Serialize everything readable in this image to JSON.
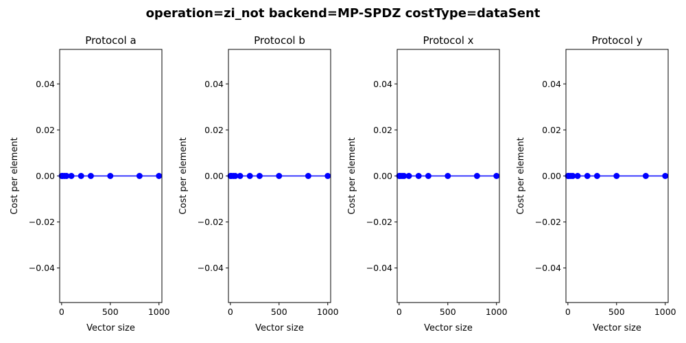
{
  "figure": {
    "title": "operation=zi_not backend=MP-SPDZ costType=dataSent"
  },
  "chart_data": [
    {
      "type": "line",
      "title": "Protocol a",
      "xlabel": "Vector size",
      "ylabel": "Cost per element",
      "xlim": [
        -20,
        1030
      ],
      "ylim": [
        -0.055,
        0.055
      ],
      "xticks": [
        0,
        500,
        1000
      ],
      "yticks": [
        -0.04,
        -0.02,
        0.0,
        0.02,
        0.04
      ],
      "ytick_labels": [
        "−0.04",
        "−0.02",
        "0.00",
        "0.02",
        "0.04"
      ],
      "grid": false,
      "color": "#0000ff",
      "series": [
        {
          "x": [
            1,
            10,
            30,
            50,
            100,
            200,
            300,
            500,
            800,
            1000
          ],
          "y": [
            0,
            0,
            0,
            0,
            0,
            0,
            0,
            0,
            0,
            0
          ]
        }
      ]
    },
    {
      "type": "line",
      "title": "Protocol b",
      "xlabel": "Vector size",
      "ylabel": "Cost per element",
      "xlim": [
        -20,
        1030
      ],
      "ylim": [
        -0.055,
        0.055
      ],
      "xticks": [
        0,
        500,
        1000
      ],
      "yticks": [
        -0.04,
        -0.02,
        0.0,
        0.02,
        0.04
      ],
      "ytick_labels": [
        "−0.04",
        "−0.02",
        "0.00",
        "0.02",
        "0.04"
      ],
      "grid": false,
      "color": "#0000ff",
      "series": [
        {
          "x": [
            1,
            10,
            30,
            50,
            100,
            200,
            300,
            500,
            800,
            1000
          ],
          "y": [
            0,
            0,
            0,
            0,
            0,
            0,
            0,
            0,
            0,
            0
          ]
        }
      ]
    },
    {
      "type": "line",
      "title": "Protocol x",
      "xlabel": "Vector size",
      "ylabel": "Cost per element",
      "xlim": [
        -20,
        1030
      ],
      "ylim": [
        -0.055,
        0.055
      ],
      "xticks": [
        0,
        500,
        1000
      ],
      "yticks": [
        -0.04,
        -0.02,
        0.0,
        0.02,
        0.04
      ],
      "ytick_labels": [
        "−0.04",
        "−0.02",
        "0.00",
        "0.02",
        "0.04"
      ],
      "grid": false,
      "color": "#0000ff",
      "series": [
        {
          "x": [
            1,
            10,
            30,
            50,
            100,
            200,
            300,
            500,
            800,
            1000
          ],
          "y": [
            0,
            0,
            0,
            0,
            0,
            0,
            0,
            0,
            0,
            0
          ]
        }
      ]
    },
    {
      "type": "line",
      "title": "Protocol y",
      "xlabel": "Vector size",
      "ylabel": "Cost per element",
      "xlim": [
        -20,
        1030
      ],
      "ylim": [
        -0.055,
        0.055
      ],
      "xticks": [
        0,
        500,
        1000
      ],
      "yticks": [
        -0.04,
        -0.02,
        0.0,
        0.02,
        0.04
      ],
      "ytick_labels": [
        "−0.04",
        "−0.02",
        "0.00",
        "0.02",
        "0.04"
      ],
      "grid": false,
      "color": "#0000ff",
      "series": [
        {
          "x": [
            1,
            10,
            30,
            50,
            100,
            200,
            300,
            500,
            800,
            1000
          ],
          "y": [
            0,
            0,
            0,
            0,
            0,
            0,
            0,
            0,
            0,
            0
          ]
        }
      ]
    }
  ]
}
